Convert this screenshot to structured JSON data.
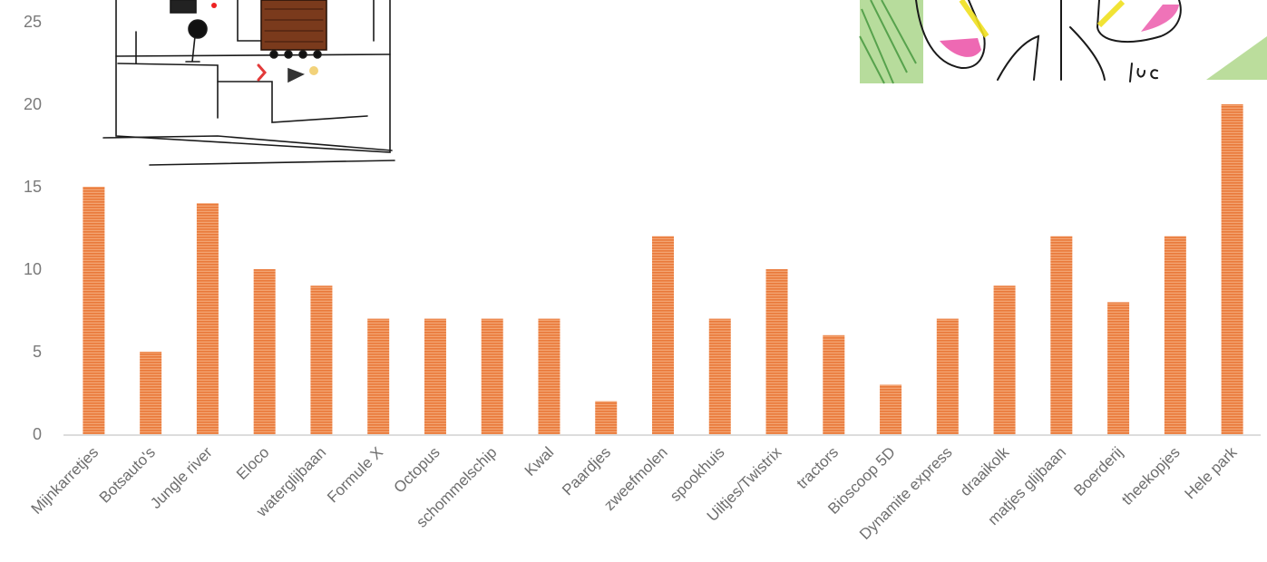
{
  "chart_data": {
    "type": "bar",
    "title": "",
    "xlabel": "",
    "ylabel": "",
    "ylim": [
      0,
      25
    ],
    "yticks": [
      0,
      5,
      10,
      15,
      20,
      25
    ],
    "grid": false,
    "bar_color": "#ed8a4e",
    "bar_pattern": "horizontal-stripes",
    "categories": [
      "Mijnkarretjes",
      "Botsauto's",
      "Jungle river",
      "Eloco",
      "waterglijbaan",
      "Formule X",
      "Octopus",
      "schommelschip",
      "Kwal",
      "Paardjes",
      "zweefmolen",
      "spookhuis",
      "Uiltjes/Twistrix",
      "tractors",
      "Bioscoop 5D",
      "Dynamite express",
      "draaikolk",
      "matjes glijbaan",
      "Boerderij",
      "theekopjes",
      "Hele park"
    ],
    "values": [
      15,
      5,
      14,
      10,
      9,
      7,
      7,
      7,
      7,
      2,
      12,
      7,
      10,
      6,
      3,
      7,
      9,
      12,
      8,
      12,
      20
    ]
  },
  "drawings": {
    "left": {
      "description_icon": "child-drawing-building"
    },
    "right": {
      "signature": "luc"
    }
  }
}
